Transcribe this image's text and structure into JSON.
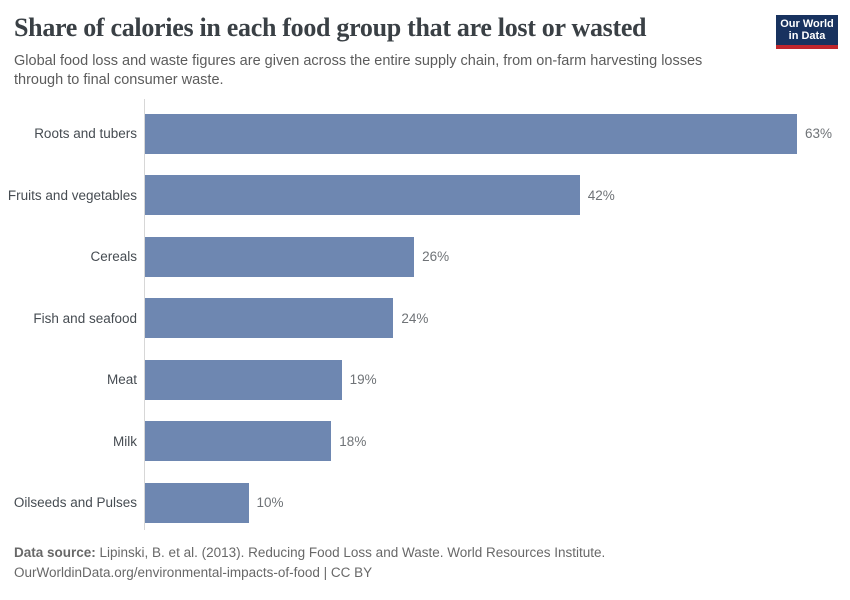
{
  "header": {
    "logo": {
      "line1": "Our World",
      "line2": "in Data"
    }
  },
  "chart_data": {
    "type": "bar",
    "orientation": "horizontal",
    "title": "Share of calories in each food group that are lost or wasted",
    "subtitle": "Global food loss and waste figures are given across the entire supply chain, from on-farm harvesting losses through to final consumer waste.",
    "categories": [
      "Roots and tubers",
      "Fruits and vegetables",
      "Cereals",
      "Fish and seafood",
      "Meat",
      "Milk",
      "Oilseeds and Pulses"
    ],
    "values": [
      63,
      42,
      26,
      24,
      19,
      18,
      10
    ],
    "value_labels": [
      "63%",
      "42%",
      "26%",
      "24%",
      "19%",
      "18%",
      "10%"
    ],
    "value_suffix": "%",
    "xlim": [
      0,
      63
    ],
    "grid": false,
    "legend": "none",
    "value_labels_position": "end-of-bar",
    "bar_color": "#6e87b1"
  },
  "footer": {
    "source_label": "Data source:",
    "source_text": " Lipinski, B. et al. (2013). Reducing Food Loss and Waste. World Resources Institute.",
    "license_line": "OurWorldinData.org/environmental-impacts-of-food | CC BY"
  },
  "colors": {
    "bar": "#6e87b1",
    "axis_line": "#d7d7d7",
    "title_text": "#3a4045",
    "subtitle_text": "#5c5c5c",
    "category_label_text": "#464c52",
    "value_label_text": "#6f7377",
    "footer_text": "#686868",
    "logo_navy": "#18325f",
    "logo_red": "#c0262d"
  }
}
